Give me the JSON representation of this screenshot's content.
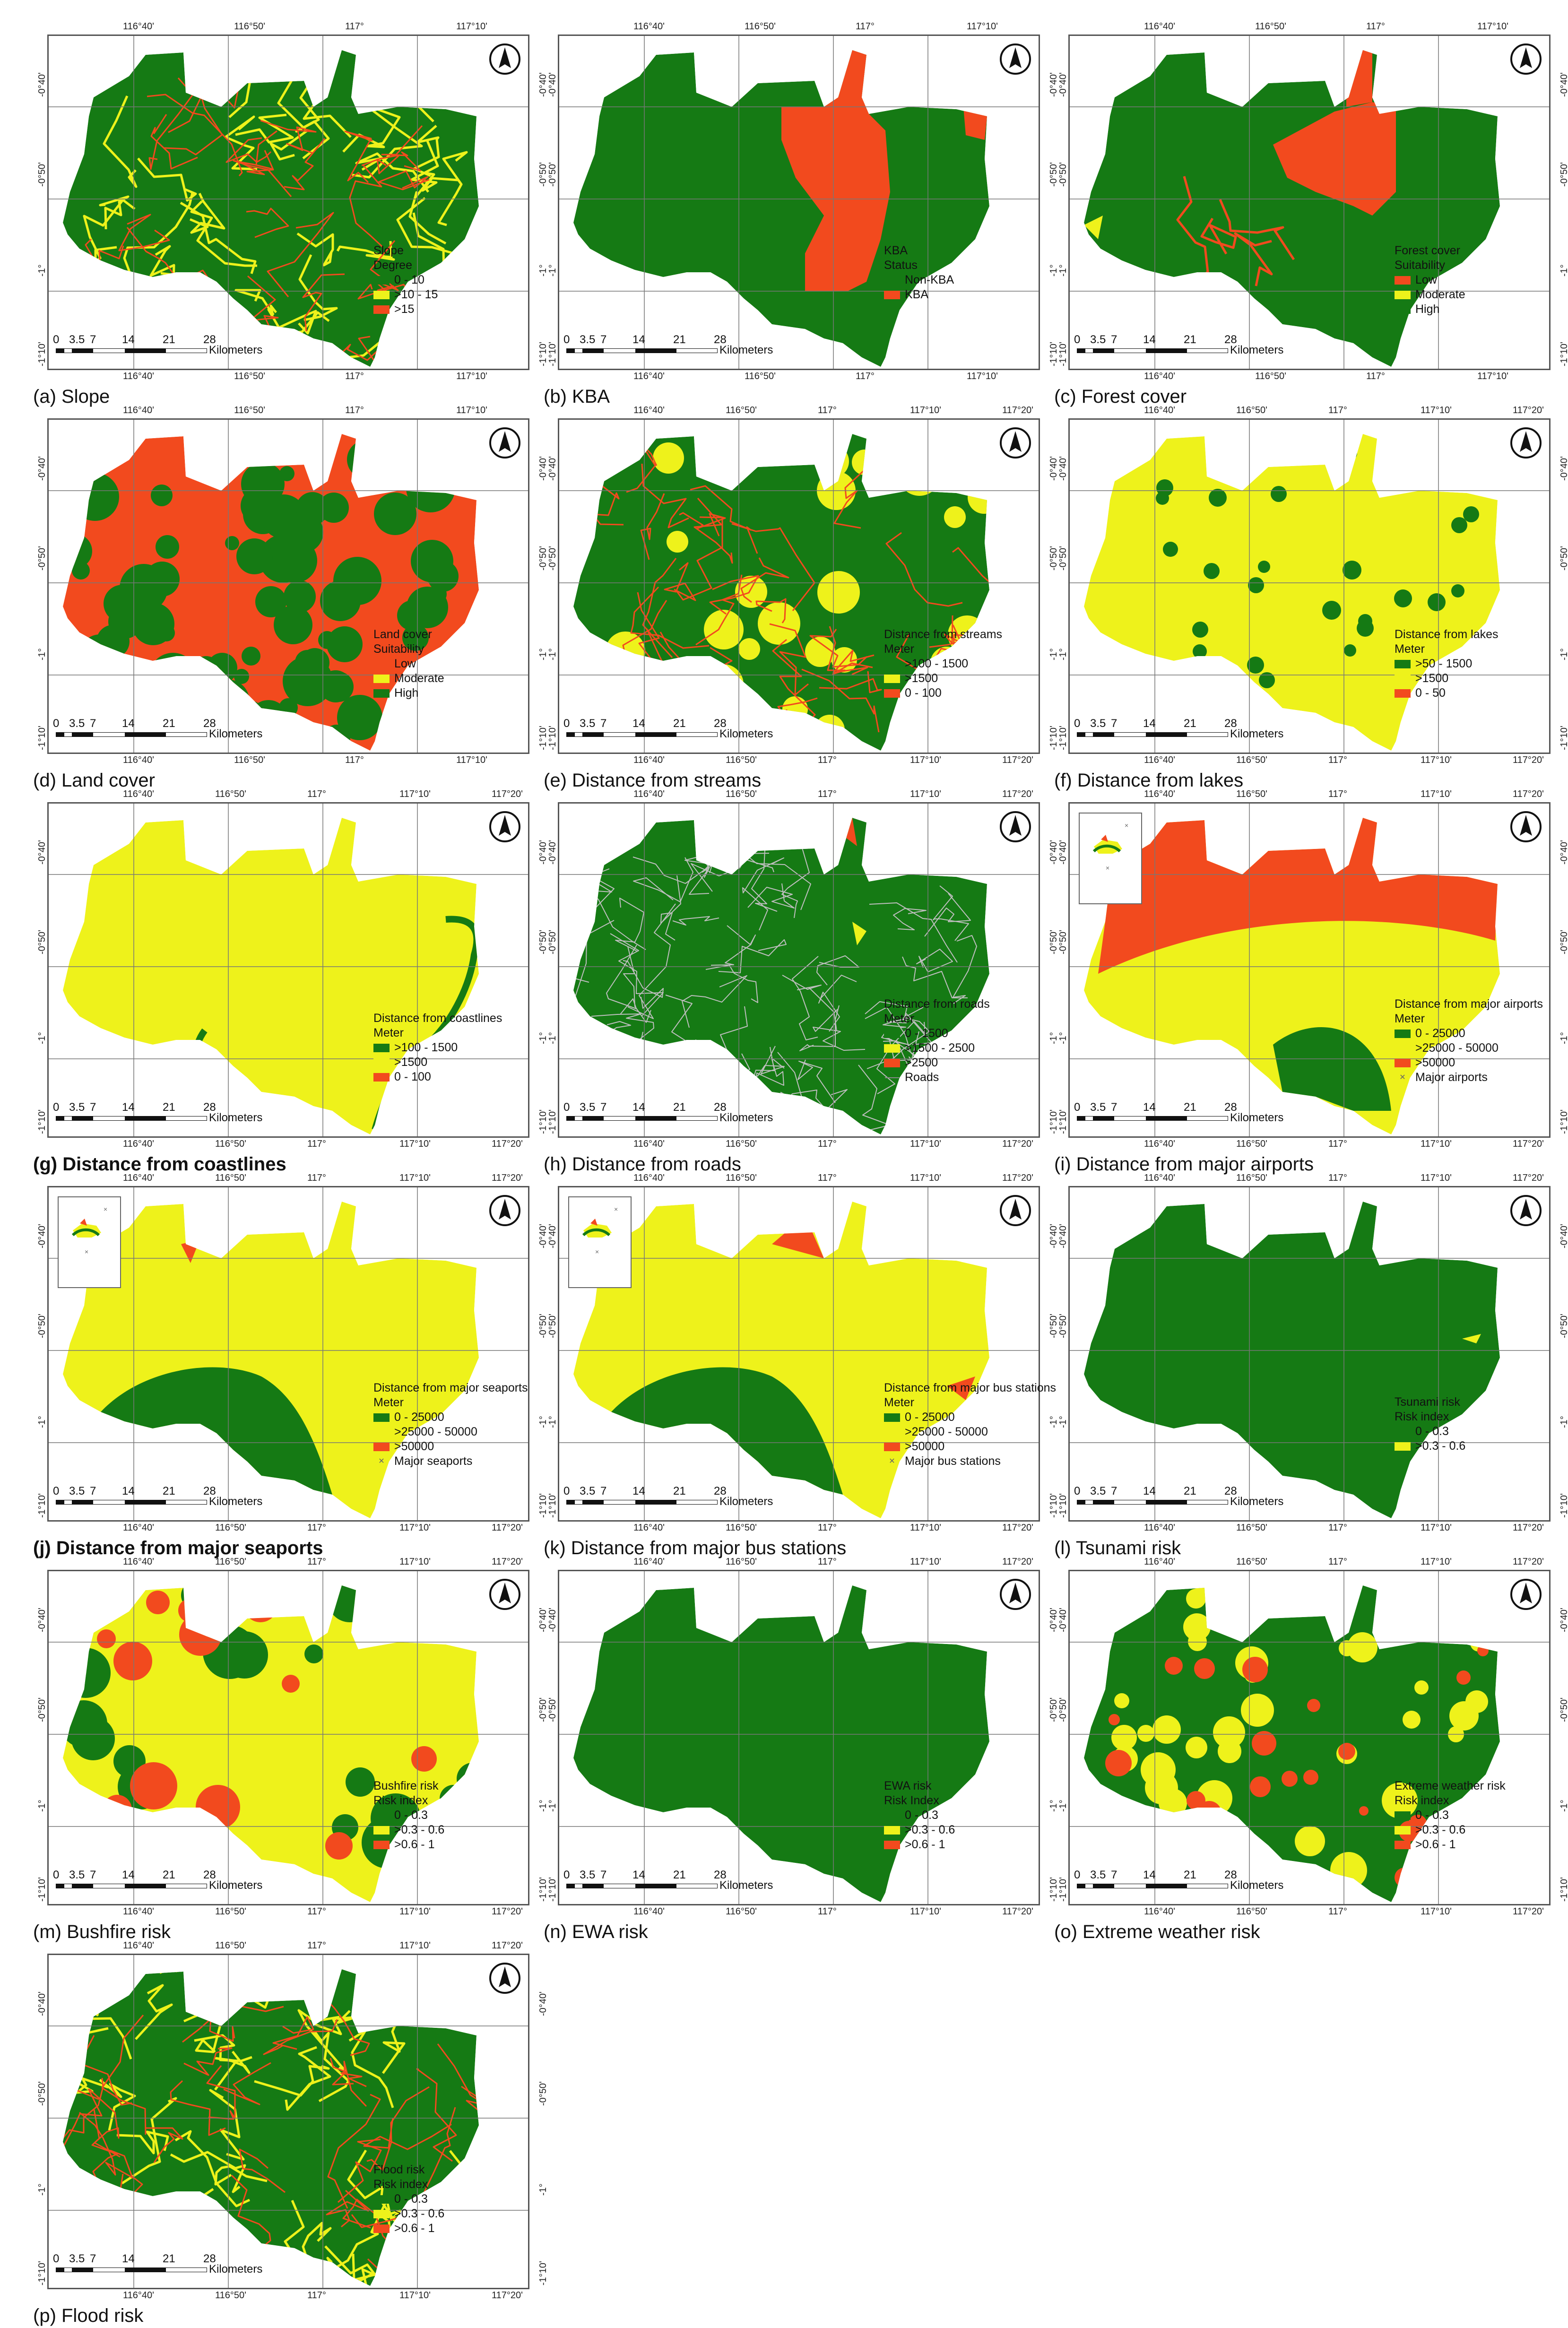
{
  "ticks": {
    "lon_a": [
      "116°40'",
      "116°50'",
      "117°",
      "117°10'"
    ],
    "lon_b": [
      "116°40'",
      "116°50'",
      "117°",
      "117°10'",
      "117°20'"
    ],
    "lat": [
      "-0°40'",
      "-0°50'",
      "-1°",
      "-1°10'"
    ]
  },
  "scale_bar": {
    "numbers": [
      "0",
      "3.5",
      "7",
      "14",
      "21",
      "28"
    ],
    "unit": "Kilometers"
  },
  "colors": {
    "green": "#157a14",
    "yellow": "#eef21b",
    "red": "#f24a1e",
    "gray": "#bfbfbf"
  },
  "panels": [
    {
      "caption": "(a) Slope",
      "legend_title": [
        "Slope",
        "Degree"
      ],
      "legend": [
        {
          "label": "0 - 10",
          "color": "green"
        },
        {
          "label": ">10 - 15",
          "color": "yellow"
        },
        {
          "label": ">15",
          "color": "red"
        }
      ]
    },
    {
      "caption": "(b) KBA",
      "legend_title": [
        "KBA",
        "Status"
      ],
      "legend": [
        {
          "label": "Non-KBA",
          "color": "green"
        },
        {
          "label": "KBA",
          "color": "red"
        }
      ]
    },
    {
      "caption": "(c) Forest cover",
      "legend_title": [
        "Forest cover",
        "Suitability"
      ],
      "legend": [
        {
          "label": "Low",
          "color": "red"
        },
        {
          "label": "Moderate",
          "color": "yellow"
        },
        {
          "label": "High",
          "color": "green"
        }
      ]
    },
    {
      "caption": "(d) Land cover",
      "legend_title": [
        "Land cover",
        "Suitability"
      ],
      "legend": [
        {
          "label": "Low",
          "color": "red"
        },
        {
          "label": "Moderate",
          "color": "yellow"
        },
        {
          "label": "High",
          "color": "green"
        }
      ]
    },
    {
      "caption": "(e) Distance from streams",
      "legend_title": [
        "Distance from streams",
        "Meter"
      ],
      "legend": [
        {
          "label": ">100 - 1500",
          "color": "green"
        },
        {
          "label": ">1500",
          "color": "yellow"
        },
        {
          "label": "0 - 100",
          "color": "red"
        }
      ]
    },
    {
      "caption": "(f) Distance from lakes",
      "legend_title": [
        "Distance from lakes",
        "Meter"
      ],
      "legend": [
        {
          "label": ">50 - 1500",
          "color": "green"
        },
        {
          "label": ">1500",
          "color": "yellow"
        },
        {
          "label": "0 - 50",
          "color": "red"
        }
      ]
    },
    {
      "caption": "(g) Distance from coastlines",
      "legend_title": [
        "Distance from coastlines",
        "Meter"
      ],
      "legend": [
        {
          "label": ">100 - 1500",
          "color": "green"
        },
        {
          "label": ">1500",
          "color": "yellow"
        },
        {
          "label": "0 - 100",
          "color": "red"
        }
      ]
    },
    {
      "caption": "(h) Distance from roads",
      "legend_title": [
        "Distance from roads",
        "Meter"
      ],
      "legend": [
        {
          "label": "0 - 1500",
          "color": "green"
        },
        {
          "label": ">1500 - 2500",
          "color": "yellow"
        },
        {
          "label": ">2500",
          "color": "red"
        },
        {
          "label": "Roads",
          "color": "line"
        }
      ]
    },
    {
      "caption": "(i) Distance from major airports",
      "legend_title": [
        "Distance from major airports",
        "Meter"
      ],
      "legend": [
        {
          "label": "0 - 25000",
          "color": "green"
        },
        {
          "label": ">25000 - 50000",
          "color": "yellow"
        },
        {
          "label": ">50000",
          "color": "red"
        },
        {
          "label": "Major airports",
          "color": "point"
        }
      ]
    },
    {
      "caption": "(j) Distance from major seaports",
      "legend_title": [
        "Distance from major seaports",
        "Meter"
      ],
      "legend": [
        {
          "label": "0 - 25000",
          "color": "green"
        },
        {
          "label": ">25000 - 50000",
          "color": "yellow"
        },
        {
          "label": ">50000",
          "color": "red"
        },
        {
          "label": "Major seaports",
          "color": "point"
        }
      ]
    },
    {
      "caption": "(k) Distance from major bus stations",
      "legend_title": [
        "Distance from major bus stations",
        "Meter"
      ],
      "legend": [
        {
          "label": "0 - 25000",
          "color": "green"
        },
        {
          "label": ">25000 - 50000",
          "color": "yellow"
        },
        {
          "label": ">50000",
          "color": "red"
        },
        {
          "label": "Major bus stations",
          "color": "point"
        }
      ]
    },
    {
      "caption": "(l) Tsunami risk",
      "legend_title": [
        "Tsunami risk",
        "Risk index"
      ],
      "legend": [
        {
          "label": "0 - 0.3",
          "color": "green"
        },
        {
          "label": ">0.3 - 0.6",
          "color": "yellow"
        }
      ]
    },
    {
      "caption": "(m) Bushfire risk",
      "legend_title": [
        "Bushfire risk",
        "Risk index"
      ],
      "legend": [
        {
          "label": "0 - 0.3",
          "color": "green"
        },
        {
          "label": ">0.3 - 0.6",
          "color": "yellow"
        },
        {
          "label": ">0.6 - 1",
          "color": "red"
        }
      ]
    },
    {
      "caption": "(n) EWA risk",
      "legend_title": [
        "EWA risk",
        "Risk Index"
      ],
      "legend": [
        {
          "label": "0 - 0.3",
          "color": "green"
        },
        {
          "label": ">0.3 - 0.6",
          "color": "yellow"
        },
        {
          "label": ">0.6 - 1",
          "color": "red"
        }
      ]
    },
    {
      "caption": "(o) Extreme weather risk",
      "legend_title": [
        "Extreme weather risk",
        "Risk index"
      ],
      "legend": [
        {
          "label": "0 - 0.3",
          "color": "green"
        },
        {
          "label": ">0.3 - 0.6",
          "color": "yellow"
        },
        {
          "label": ">0.6 - 1",
          "color": "red"
        }
      ]
    },
    {
      "caption": "(p) Flood risk",
      "legend_title": [
        "Flood risk",
        "Risk index"
      ],
      "legend": [
        {
          "label": "0 - 0.3",
          "color": "green"
        },
        {
          "label": ">0.3 - 0.6",
          "color": "yellow"
        },
        {
          "label": ">0.6 - 1",
          "color": "red"
        }
      ]
    }
  ]
}
